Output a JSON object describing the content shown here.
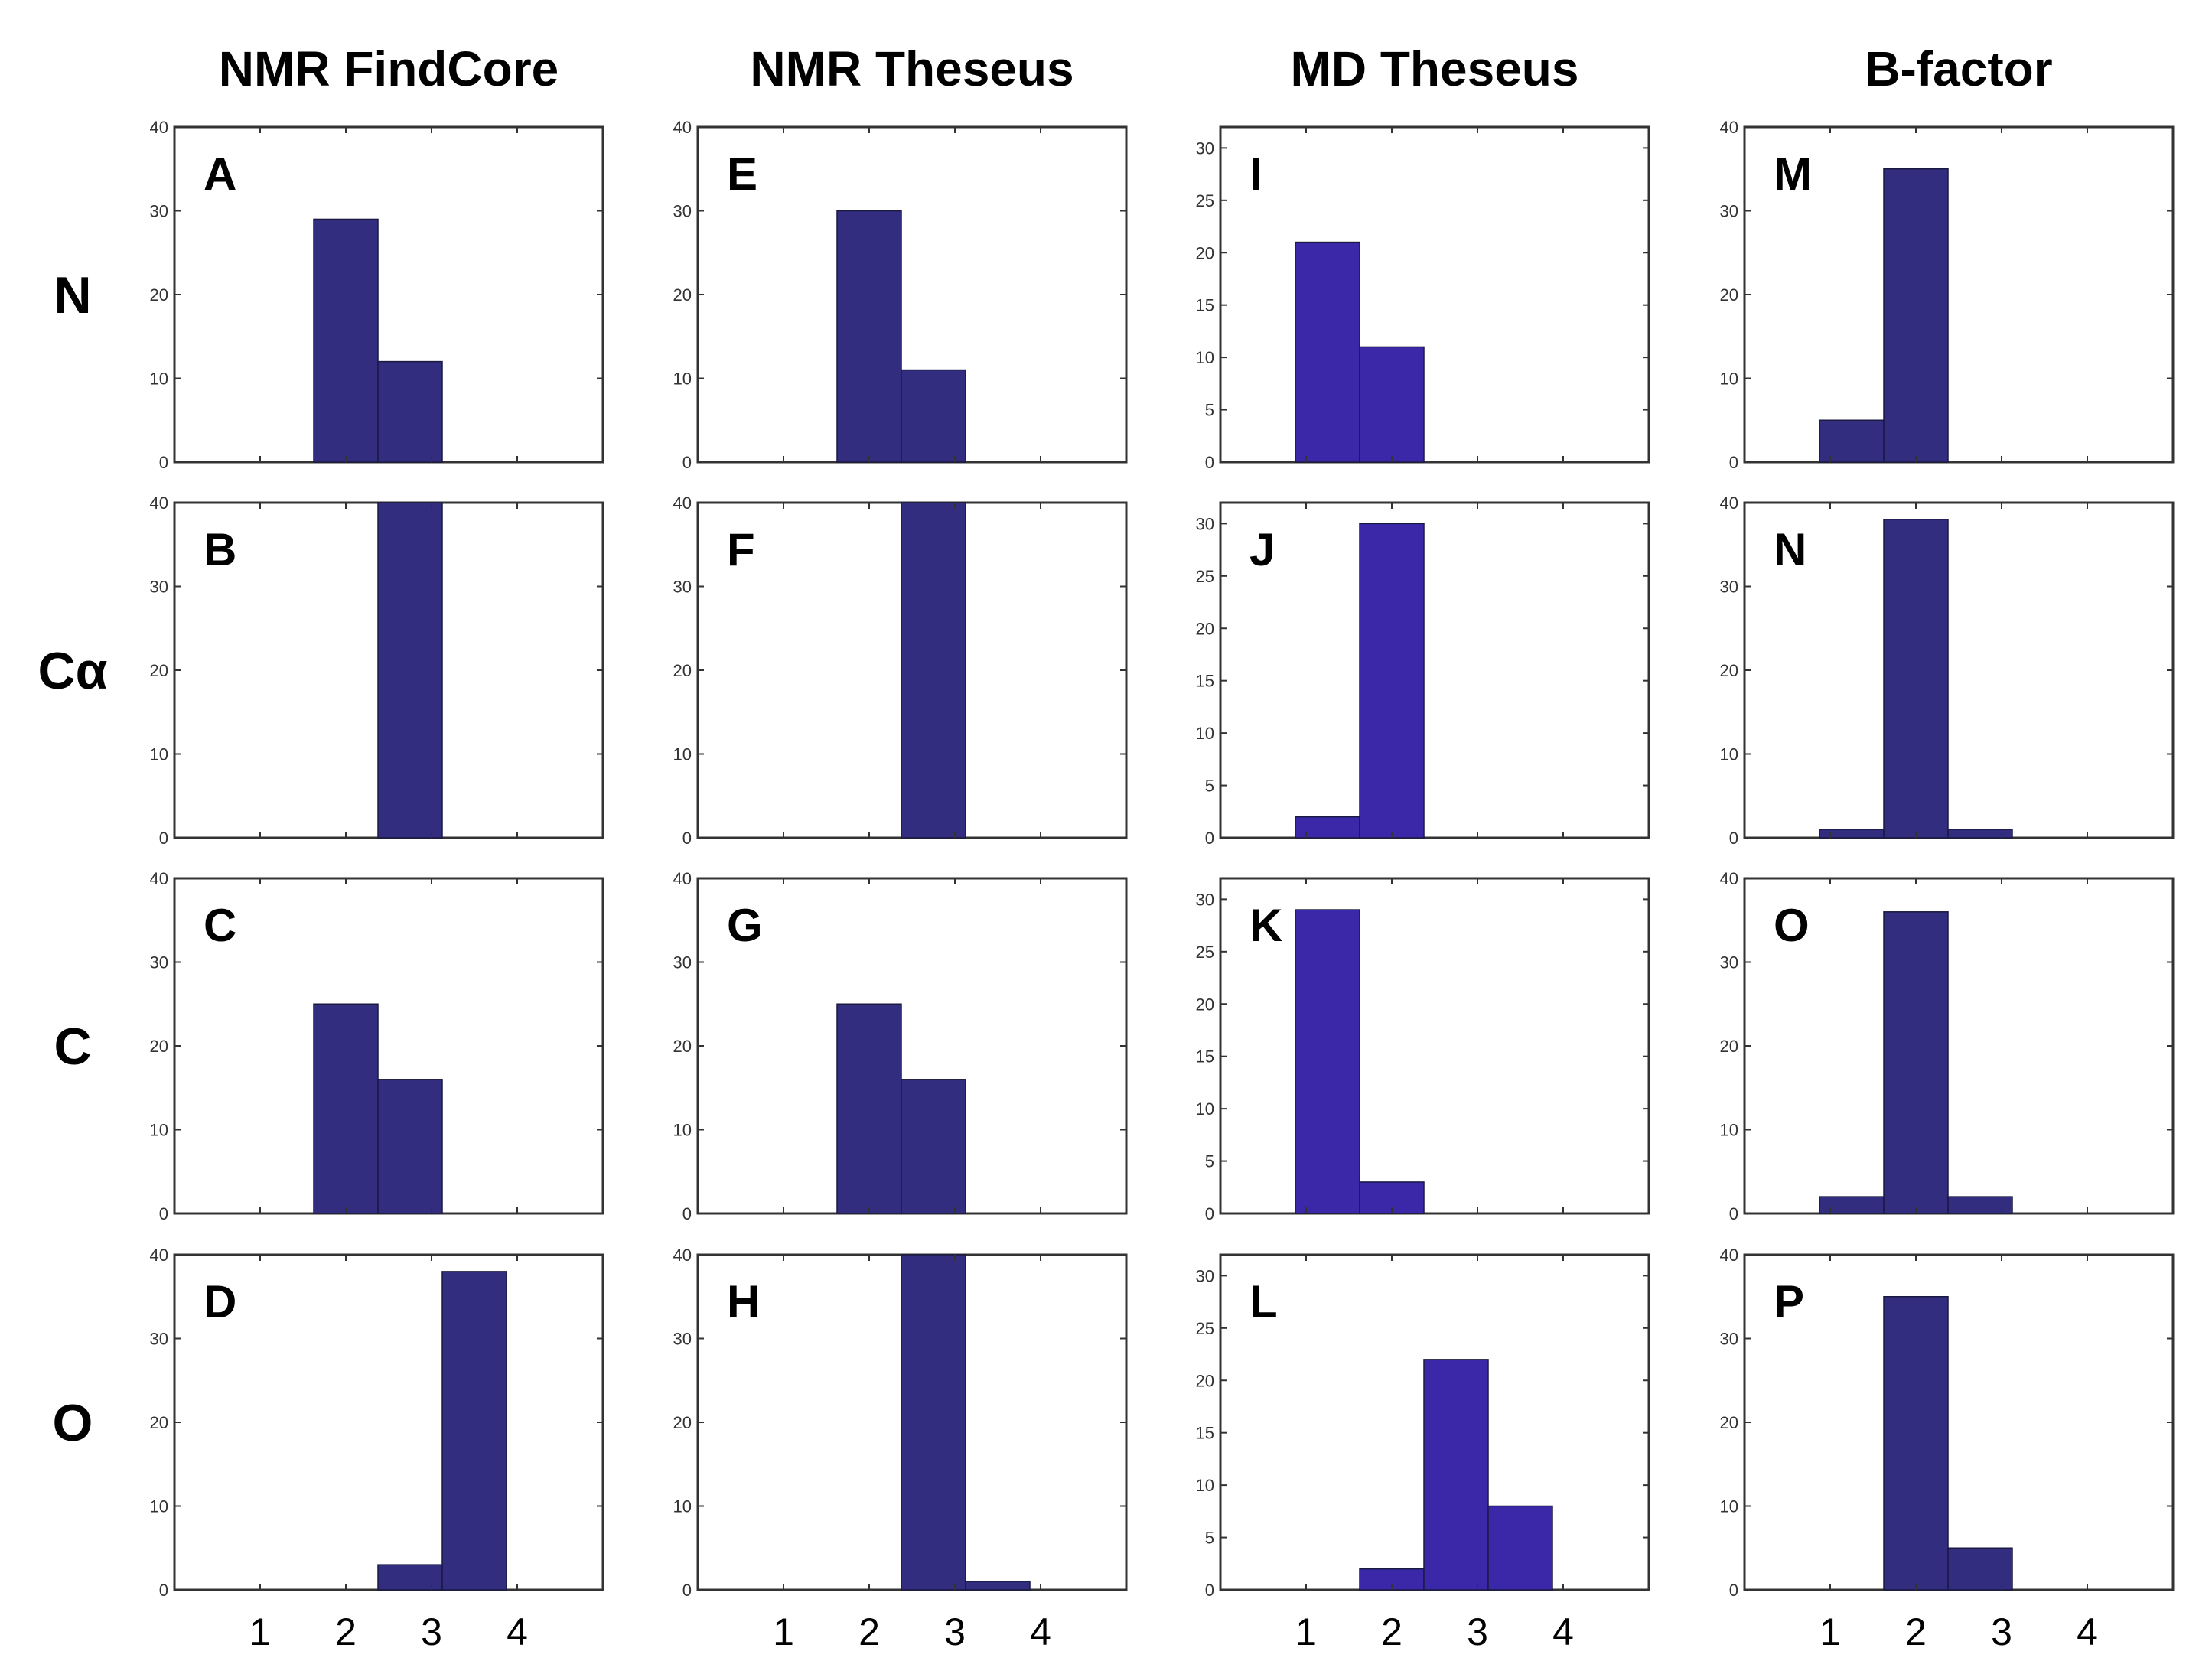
{
  "chart_data": {
    "type": "bar",
    "bar_colors": {
      "NMR FindCore": "#332d80",
      "NMR Theseus": "#332d80",
      "MD Theseus": "#3a28a8",
      "B-factor": "#332d80"
    },
    "column_titles": [
      "NMR FindCore",
      "NMR Theseus",
      "MD Theseus",
      "B-factor"
    ],
    "row_labels": [
      "N",
      "Cα",
      "C",
      "O"
    ],
    "x_tick_labels": [
      "1",
      "2",
      "3",
      "4"
    ],
    "bin_centers": [
      1.25,
      2.0,
      2.75,
      3.5
    ],
    "bin_width": 0.75,
    "xlim": [
      0,
      5
    ],
    "panels": [
      {
        "letter": "A",
        "column": "NMR FindCore",
        "row": "N",
        "ylim": [
          0,
          40
        ],
        "yticks": [
          "0",
          "10",
          "20",
          "30",
          "40"
        ],
        "values": [
          0,
          29,
          12,
          0
        ]
      },
      {
        "letter": "B",
        "column": "NMR FindCore",
        "row": "Cα",
        "ylim": [
          0,
          40
        ],
        "yticks": [
          "0",
          "10",
          "20",
          "30",
          "40"
        ],
        "values": [
          0,
          0,
          41,
          0
        ]
      },
      {
        "letter": "C",
        "column": "NMR FindCore",
        "row": "C",
        "ylim": [
          0,
          40
        ],
        "yticks": [
          "0",
          "10",
          "20",
          "30",
          "40"
        ],
        "values": [
          0,
          25,
          16,
          0
        ]
      },
      {
        "letter": "D",
        "column": "NMR FindCore",
        "row": "O",
        "ylim": [
          0,
          40
        ],
        "yticks": [
          "0",
          "10",
          "20",
          "30",
          "40"
        ],
        "values": [
          0,
          0,
          3,
          38
        ]
      },
      {
        "letter": "E",
        "column": "NMR Theseus",
        "row": "N",
        "ylim": [
          0,
          40
        ],
        "yticks": [
          "0",
          "10",
          "20",
          "30",
          "40"
        ],
        "values": [
          0,
          30,
          11,
          0
        ]
      },
      {
        "letter": "F",
        "column": "NMR Theseus",
        "row": "Cα",
        "ylim": [
          0,
          40
        ],
        "yticks": [
          "0",
          "10",
          "20",
          "30",
          "40"
        ],
        "values": [
          0,
          0,
          41,
          0
        ]
      },
      {
        "letter": "G",
        "column": "NMR Theseus",
        "row": "C",
        "ylim": [
          0,
          40
        ],
        "yticks": [
          "0",
          "10",
          "20",
          "30",
          "40"
        ],
        "values": [
          0,
          25,
          16,
          0
        ]
      },
      {
        "letter": "H",
        "column": "NMR Theseus",
        "row": "O",
        "ylim": [
          0,
          40
        ],
        "yticks": [
          "0",
          "10",
          "20",
          "30",
          "40"
        ],
        "values": [
          0,
          0,
          40,
          1
        ]
      },
      {
        "letter": "I",
        "column": "MD Theseus",
        "row": "N",
        "ylim": [
          0,
          32
        ],
        "yticks": [
          "0",
          "5",
          "10",
          "15",
          "20",
          "25",
          "30"
        ],
        "values": [
          21,
          11,
          0,
          0
        ]
      },
      {
        "letter": "J",
        "column": "MD Theseus",
        "row": "Cα",
        "ylim": [
          0,
          32
        ],
        "yticks": [
          "0",
          "5",
          "10",
          "15",
          "20",
          "25",
          "30"
        ],
        "values": [
          2,
          30,
          0,
          0
        ]
      },
      {
        "letter": "K",
        "column": "MD Theseus",
        "row": "C",
        "ylim": [
          0,
          32
        ],
        "yticks": [
          "0",
          "5",
          "10",
          "15",
          "20",
          "25",
          "30"
        ],
        "values": [
          29,
          3,
          0,
          0
        ]
      },
      {
        "letter": "L",
        "column": "MD Theseus",
        "row": "O",
        "ylim": [
          0,
          32
        ],
        "yticks": [
          "0",
          "5",
          "10",
          "15",
          "20",
          "25",
          "30"
        ],
        "values": [
          0,
          2,
          22,
          8
        ]
      },
      {
        "letter": "M",
        "column": "B-factor",
        "row": "N",
        "ylim": [
          0,
          40
        ],
        "yticks": [
          "0",
          "10",
          "20",
          "30",
          "40"
        ],
        "values": [
          5,
          35,
          0,
          0
        ]
      },
      {
        "letter": "N",
        "column": "B-factor",
        "row": "Cα",
        "ylim": [
          0,
          40
        ],
        "yticks": [
          "0",
          "10",
          "20",
          "30",
          "40"
        ],
        "values": [
          1,
          38,
          1,
          0
        ]
      },
      {
        "letter": "O",
        "column": "B-factor",
        "row": "C",
        "ylim": [
          0,
          40
        ],
        "yticks": [
          "0",
          "10",
          "20",
          "30",
          "40"
        ],
        "values": [
          2,
          36,
          2,
          0
        ]
      },
      {
        "letter": "P",
        "column": "B-factor",
        "row": "O",
        "ylim": [
          0,
          40
        ],
        "yticks": [
          "0",
          "10",
          "20",
          "30",
          "40"
        ],
        "values": [
          0,
          35,
          5,
          0
        ]
      }
    ]
  }
}
